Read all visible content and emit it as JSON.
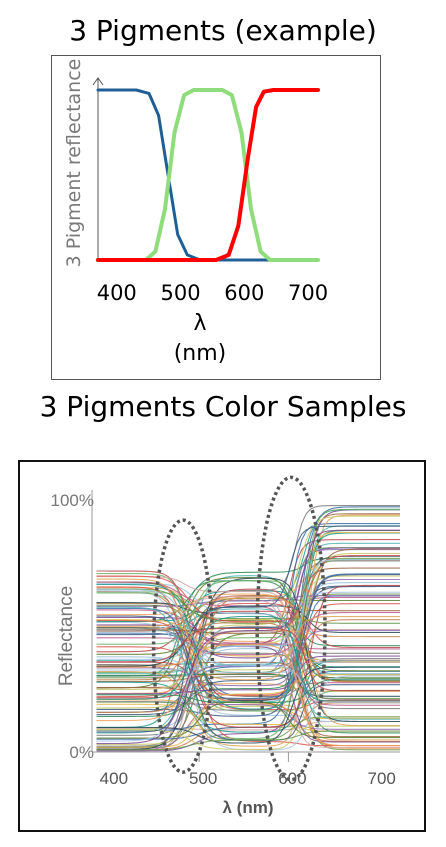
{
  "titles": {
    "top": "3 Pigments (example)",
    "bottom": "3 Pigments Color Samples"
  },
  "chart_data": [
    {
      "type": "line",
      "title": "3 Pigments (example)",
      "xlabel_symbol": "λ",
      "xlabel_unit": "(nm)",
      "ylabel": "3 Pigment reflectance",
      "xlim": [
        380,
        725
      ],
      "ylim": [
        0,
        1
      ],
      "x_ticks": [
        "400",
        "500",
        "600",
        "700"
      ],
      "series": [
        {
          "color": "#1f5f94",
          "points": [
            [
              380,
              1
            ],
            [
              440,
              1
            ],
            [
              460,
              0.98
            ],
            [
              475,
              0.85
            ],
            [
              490,
              0.5
            ],
            [
              505,
              0.15
            ],
            [
              520,
              0.03
            ],
            [
              540,
              0
            ],
            [
              725,
              0
            ]
          ]
        },
        {
          "color": "#8fdc7c",
          "points": [
            [
              380,
              0
            ],
            [
              455,
              0
            ],
            [
              470,
              0.05
            ],
            [
              485,
              0.3
            ],
            [
              500,
              0.75
            ],
            [
              515,
              0.97
            ],
            [
              530,
              1
            ],
            [
              575,
              1
            ],
            [
              590,
              0.97
            ],
            [
              605,
              0.75
            ],
            [
              620,
              0.3
            ],
            [
              635,
              0.05
            ],
            [
              650,
              0
            ],
            [
              725,
              0
            ]
          ]
        },
        {
          "color": "#ff0000",
          "points": [
            [
              380,
              0
            ],
            [
              565,
              0
            ],
            [
              585,
              0.03
            ],
            [
              600,
              0.2
            ],
            [
              615,
              0.6
            ],
            [
              628,
              0.9
            ],
            [
              640,
              0.99
            ],
            [
              655,
              1
            ],
            [
              725,
              1
            ]
          ]
        }
      ]
    },
    {
      "type": "line",
      "title": "3 Pigments Color Samples",
      "xlabel": "λ (nm)",
      "ylabel": "Reflectance",
      "xlim": [
        380,
        725
      ],
      "ylim": [
        0,
        1
      ],
      "x_ticks": [
        "400",
        "500",
        "600",
        "700"
      ],
      "y_ticks": [
        "0%",
        "100%"
      ],
      "sample_count": 120,
      "sample_palette": [
        "#3b6ea5",
        "#6fb36a",
        "#d9534f",
        "#e6b84c",
        "#8e6bb0",
        "#4fb3b3",
        "#c77f4a",
        "#7d7d7d",
        "#2e8b57",
        "#b85c8a",
        "#5a7d2b",
        "#a7c7e7",
        "#f4a261",
        "#264653",
        "#9c6644",
        "#c9c96b",
        "#6a994e",
        "#bc4749",
        "#3d5a80",
        "#98c1d9",
        "#e0a458",
        "#7b4b94",
        "#1b998b",
        "#d4a5a5"
      ],
      "highlight_ellipses": [
        {
          "cx": 482,
          "cy": 0.42,
          "rx": 33,
          "ry": 0.5
        },
        {
          "cx": 603,
          "cy": 0.49,
          "rx": 38,
          "ry": 0.6
        }
      ]
    }
  ]
}
